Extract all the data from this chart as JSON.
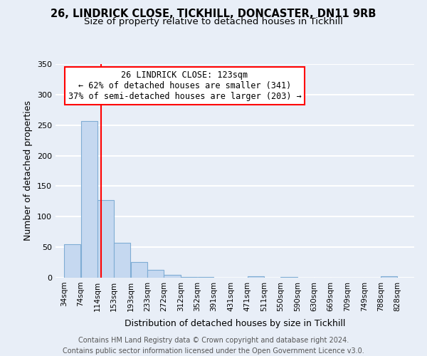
{
  "title_line1": "26, LINDRICK CLOSE, TICKHILL, DONCASTER, DN11 9RB",
  "title_line2": "Size of property relative to detached houses in Tickhill",
  "xlabel": "Distribution of detached houses by size in Tickhill",
  "ylabel": "Number of detached properties",
  "bar_left_edges": [
    34,
    74,
    114,
    153,
    193,
    233,
    272,
    312,
    352,
    391,
    431,
    471,
    511,
    550,
    590,
    630,
    669,
    709,
    749,
    788
  ],
  "bar_widths": [
    40,
    40,
    39,
    40,
    40,
    39,
    40,
    40,
    39,
    40,
    40,
    40,
    39,
    40,
    40,
    39,
    40,
    40,
    39,
    40
  ],
  "bar_heights": [
    55,
    257,
    127,
    57,
    26,
    13,
    5,
    1,
    1,
    0,
    0,
    2,
    0,
    1,
    0,
    0,
    0,
    0,
    0,
    2
  ],
  "bar_color": "#c5d8f0",
  "bar_edge_color": "#7fadd4",
  "tick_labels": [
    "34sqm",
    "74sqm",
    "114sqm",
    "153sqm",
    "193sqm",
    "233sqm",
    "272sqm",
    "312sqm",
    "352sqm",
    "391sqm",
    "431sqm",
    "471sqm",
    "511sqm",
    "550sqm",
    "590sqm",
    "630sqm",
    "669sqm",
    "709sqm",
    "749sqm",
    "788sqm",
    "828sqm"
  ],
  "vline_x": 123,
  "vline_color": "red",
  "annotation_title": "26 LINDRICK CLOSE: 123sqm",
  "annotation_line2": "← 62% of detached houses are smaller (341)",
  "annotation_line3": "37% of semi-detached houses are larger (203) →",
  "annotation_box_color": "white",
  "annotation_box_edge_color": "red",
  "ylim": [
    0,
    350
  ],
  "yticks": [
    0,
    50,
    100,
    150,
    200,
    250,
    300,
    350
  ],
  "xlim_min": 14,
  "xlim_max": 868,
  "footer_line1": "Contains HM Land Registry data © Crown copyright and database right 2024.",
  "footer_line2": "Contains public sector information licensed under the Open Government Licence v3.0.",
  "bg_color": "#e8eef7",
  "plot_bg_color": "#e8eef7",
  "grid_color": "white",
  "title_fontsize": 10.5,
  "subtitle_fontsize": 9.5,
  "axis_label_fontsize": 9,
  "tick_fontsize": 7.5,
  "footer_fontsize": 7,
  "annotation_fontsize": 8.5
}
